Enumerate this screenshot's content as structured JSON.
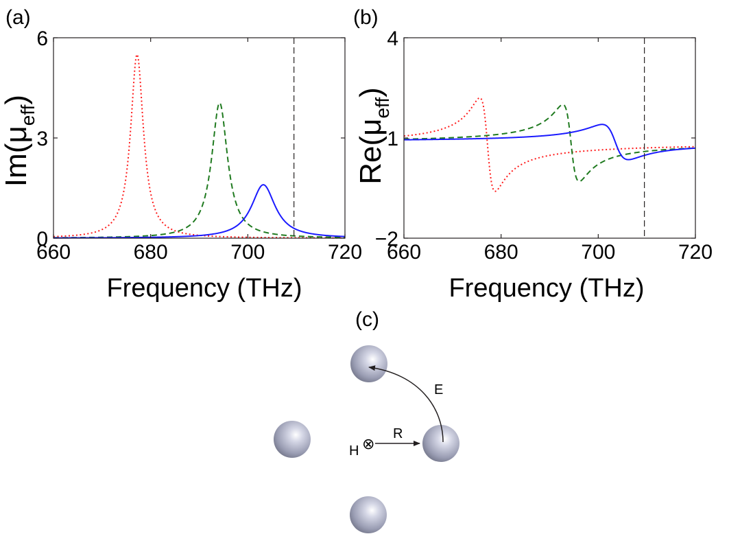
{
  "panel_labels": {
    "a": "(a)",
    "b": "(b)",
    "c": "(c)"
  },
  "colors": {
    "red": "#ff1a1a",
    "green": "#1f7a1f",
    "blue": "#1a1aff",
    "axis": "#231f20",
    "sphere": "#a9acbf"
  },
  "chart_data": [
    {
      "type": "line",
      "panel": "(a)",
      "xlabel": "Frequency (THz)",
      "ylabel_main": "Im(μ",
      "ylabel_sub": "eff",
      "ylabel_close": ")",
      "xlim": [
        660,
        720
      ],
      "ylim": [
        0,
        6
      ],
      "xticks": [
        660,
        680,
        700,
        720
      ],
      "yticks": [
        0,
        3,
        6
      ],
      "grid": false,
      "vline_x": 709.5,
      "series": [
        {
          "style": "dotted",
          "color": "#ff1a1a",
          "resonance": 677.2,
          "amplitude": 5.5,
          "halfwidth": 1.6
        },
        {
          "style": "dashed",
          "color": "#1f7a1f",
          "resonance": 694.2,
          "amplitude": 4.05,
          "halfwidth": 2.0
        },
        {
          "style": "solid",
          "color": "#1a1aff",
          "resonance": 703.2,
          "amplitude": 1.6,
          "halfwidth": 3.0
        }
      ]
    },
    {
      "type": "line",
      "panel": "(b)",
      "xlabel": "Frequency (THz)",
      "ylabel_main": "Re(μ",
      "ylabel_sub": "eff",
      "ylabel_close": ")",
      "xlim": [
        660,
        720
      ],
      "ylim": [
        -2,
        4
      ],
      "xticks": [
        660,
        680,
        700,
        720
      ],
      "yticks": [
        -2,
        1,
        4
      ],
      "ytick_labels": [
        "−2",
        "1",
        "4"
      ],
      "grid": false,
      "vline_x": 709.5,
      "series": [
        {
          "style": "dotted",
          "color": "#ff1a1a",
          "resonance": 677.2,
          "halfwidth": 1.6,
          "baseline": 0.8,
          "amplitude": 5.6,
          "offset": -0.25,
          "end_value": 0.85
        },
        {
          "style": "dashed",
          "color": "#1f7a1f",
          "resonance": 694.4,
          "halfwidth": 1.7,
          "baseline": 0.85,
          "amplitude": 4.6,
          "offset": -0.3,
          "end_value": 0.85
        },
        {
          "style": "solid",
          "color": "#1a1aff",
          "resonance": 703.5,
          "halfwidth": 2.7,
          "baseline": 0.88,
          "amplitude": 2.1,
          "offset": -0.35,
          "end_value": 0.85
        }
      ]
    }
  ],
  "diagram": {
    "labels": {
      "h": "H",
      "r": "R",
      "e": "E",
      "cross": "⊗"
    }
  }
}
